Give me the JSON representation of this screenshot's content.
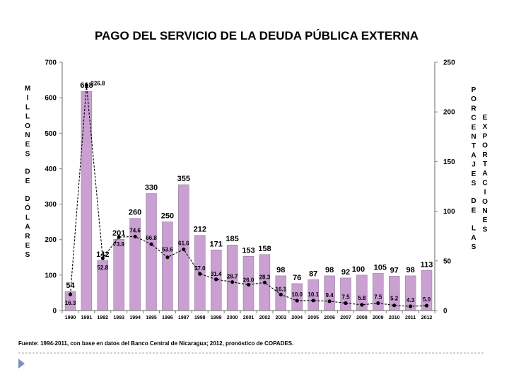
{
  "chart_data": {
    "type": "bar",
    "title": "PAGO DEL SERVICIO DE LA DEUDA PÚBLICA EXTERNA",
    "ylabel": "MILLONES DE DÓLARES",
    "ylabel_right": "PORCENTAJES DE LAS EXPORTACIONES",
    "ylabel_left_words": [
      "MILLONES",
      "DE",
      "DÓLARES"
    ],
    "ylabel_right_col1_words": [
      "PORCENTAJES",
      "DE",
      "LAS"
    ],
    "ylabel_right_col2_words": [
      "EXPORTACIONES"
    ],
    "categories": [
      "1990",
      "1991",
      "1992",
      "1993",
      "1994",
      "1995",
      "1996",
      "1997",
      "1998",
      "1999",
      "2000",
      "2001",
      "2002",
      "2003",
      "2004",
      "2005",
      "2006",
      "2007",
      "2008",
      "2009",
      "2010",
      "2011",
      "2012"
    ],
    "series": [
      {
        "name": "Pago del servicio (millones de dólares)",
        "kind": "bar",
        "axis": "left",
        "values": [
          54,
          618,
          142,
          201,
          260,
          330,
          250,
          355,
          212,
          171,
          185,
          153,
          158,
          98,
          76,
          87,
          98,
          92,
          100,
          105,
          97,
          98,
          113
        ],
        "labels": [
          "54",
          "618",
          "142",
          "201",
          "260",
          "330",
          "250",
          "355",
          "212",
          "171",
          "185",
          "153",
          "158",
          "98",
          "76",
          "87",
          "98",
          "92",
          "100",
          "105",
          "97",
          "98",
          "113"
        ]
      },
      {
        "name": "Porcentaje de las exportaciones",
        "kind": "line",
        "axis": "right",
        "values": [
          16.3,
          226.8,
          52.8,
          73.9,
          74.6,
          66.8,
          53.6,
          61.6,
          37.0,
          31.4,
          28.7,
          26.0,
          28.3,
          16.1,
          10.0,
          10.1,
          9.4,
          7.5,
          5.8,
          7.5,
          5.2,
          4.3,
          5.0
        ],
        "labels": [
          "16.3",
          "226.8",
          "52.8",
          "73.9",
          "74.6",
          "66.8",
          "53.6",
          "61.6",
          "37.0",
          "31.4",
          "28.7",
          "26.0",
          "28.3",
          "16.1",
          "10.0",
          "10.1",
          "9.4",
          "7.5",
          "5.8",
          "7.5",
          "5.2",
          "4.3",
          "5.0"
        ]
      }
    ],
    "ylim": [
      0,
      700
    ],
    "yticks": [
      0,
      100,
      200,
      300,
      400,
      500,
      600,
      700
    ],
    "y2lim": [
      0,
      250
    ],
    "y2ticks": [
      0,
      50,
      100,
      150,
      200,
      250
    ],
    "source": "Fuente: 1994-2011,  con base en datos del Banco Central de Nicaragua; 2012, pronóstico de COPADES.",
    "colors": {
      "bar": "#c9a0d1",
      "bar_edge": "#7a5c80",
      "line": "#000000",
      "axis": "#808080"
    }
  }
}
